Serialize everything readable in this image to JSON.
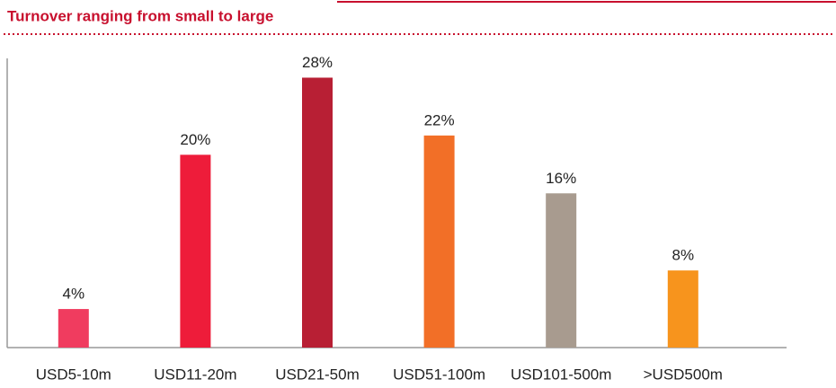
{
  "chart_data": {
    "type": "bar",
    "title": "Turnover ranging from small to large",
    "categories": [
      "USD5-10m",
      "USD11-20m",
      "USD21-50m",
      "USD51-100m",
      "USD101-500m",
      ">USD500m"
    ],
    "values": [
      4,
      20,
      28,
      22,
      16,
      8
    ],
    "value_labels": [
      "4%",
      "20%",
      "28%",
      "22%",
      "16%",
      "8%"
    ],
    "colors": [
      "#f03c5f",
      "#ee1c3a",
      "#b81f34",
      "#f26f27",
      "#a89b8f",
      "#f7941d"
    ],
    "ylim": [
      0,
      30
    ]
  }
}
